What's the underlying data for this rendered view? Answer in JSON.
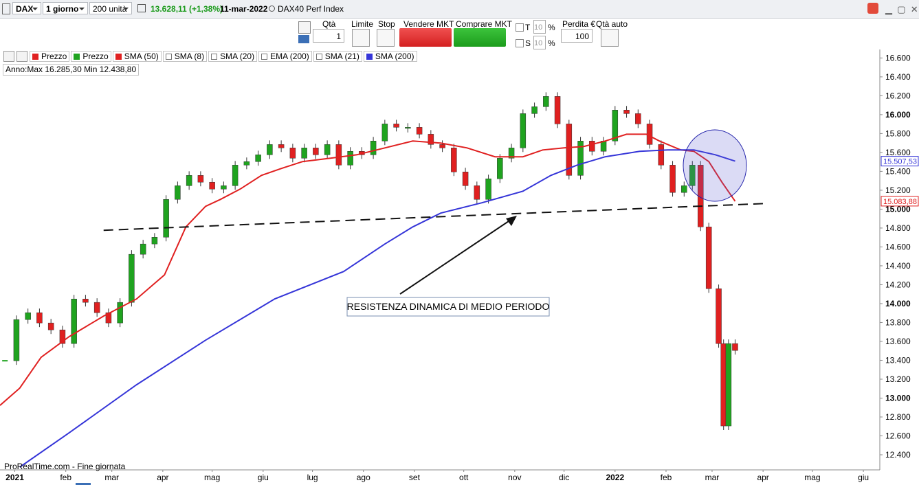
{
  "toolbar": {
    "symbol": "DAX",
    "period": "1 giorno",
    "units": "200 unità",
    "last_price": "13.628,11",
    "change": "(+1,38%)",
    "date": "11-mar-2022",
    "instrument": "DAX40 Perf Index"
  },
  "order_panel": {
    "qty_label": "Qtà",
    "qty": 1,
    "limit_label": "Limite",
    "stop_label": "Stop",
    "sell_label": "Vendere MKT",
    "buy_label": "Comprare MKT",
    "t_label": "T",
    "t_value": 10,
    "t_unit": "%",
    "s_label": "S",
    "s_value": 10,
    "s_unit": "%",
    "loss_label": "Perdita €",
    "loss_value": 100,
    "auto_qty_label": "Qtà auto"
  },
  "chart_data": {
    "type": "candlestick",
    "legend": [
      {
        "name": "Prezzo",
        "color": "#e02020"
      },
      {
        "name": "Prezzo",
        "color": "#1fa31f"
      },
      {
        "name": "SMA (50)",
        "color": "#e02020"
      },
      {
        "name": "SMA (8)"
      },
      {
        "name": "SMA (20)"
      },
      {
        "name": "EMA (200)"
      },
      {
        "name": "SMA (21)"
      },
      {
        "name": "SMA (200)",
        "color": "#3535d8"
      }
    ],
    "info": "Anno:Max 16.285,30 Min 12.438,80",
    "footer": "ProRealTime.com - Fine giornata",
    "annotation": "RESISTENZA DINAMICA DI MEDIO PERIODO",
    "xlim": [
      -9,
      526
    ],
    "ylim": [
      12240,
      16690
    ],
    "xticks": [
      {
        "value": 0,
        "label": "2021"
      },
      {
        "value": 31,
        "label": "feb"
      },
      {
        "value": 59,
        "label": "mar"
      },
      {
        "value": 90,
        "label": "apr"
      },
      {
        "value": 120,
        "label": "mag"
      },
      {
        "value": 151,
        "label": "giu"
      },
      {
        "value": 181,
        "label": "lug"
      },
      {
        "value": 212,
        "label": "ago"
      },
      {
        "value": 243,
        "label": "set"
      },
      {
        "value": 273,
        "label": "ott"
      },
      {
        "value": 304,
        "label": "nov"
      },
      {
        "value": 334,
        "label": "dic"
      },
      {
        "value": 365,
        "label": "2022"
      },
      {
        "value": 396,
        "label": "feb"
      },
      {
        "value": 424,
        "label": "mar"
      },
      {
        "value": 455,
        "label": "apr"
      },
      {
        "value": 485,
        "label": "mag"
      },
      {
        "value": 516,
        "label": "giu"
      }
    ],
    "yticks": [
      {
        "value": 12400,
        "label": "12.400"
      },
      {
        "value": 12600,
        "label": "12.600"
      },
      {
        "value": 12800,
        "label": "12.800"
      },
      {
        "value": 13000,
        "label": "13.000"
      },
      {
        "value": 13200,
        "label": "13.200"
      },
      {
        "value": 13400,
        "label": "13.400"
      },
      {
        "value": 13600,
        "label": "13.600"
      },
      {
        "value": 13800,
        "label": "13.800"
      },
      {
        "value": 14000,
        "label": "14.000"
      },
      {
        "value": 14200,
        "label": "14.200"
      },
      {
        "value": 14400,
        "label": "14.400"
      },
      {
        "value": 14600,
        "label": "14.600"
      },
      {
        "value": 14800,
        "label": "14.800"
      },
      {
        "value": 15000,
        "label": "15.000"
      },
      {
        "value": 15200,
        "label": "15.200"
      },
      {
        "value": 15400,
        "label": "15.400"
      },
      {
        "value": 15600,
        "label": "15.600"
      },
      {
        "value": 15800,
        "label": "15.800"
      },
      {
        "value": 16000,
        "label": "16.000"
      },
      {
        "value": 16200,
        "label": "16.200"
      },
      {
        "value": 16400,
        "label": "16.400"
      },
      {
        "value": 16600,
        "label": "16.600"
      }
    ],
    "series": [
      {
        "up_color": "#1fa31f",
        "down_color": "#e02020",
        "x": [
          -6,
          1,
          8,
          15,
          22,
          29,
          36,
          43,
          50,
          57,
          64,
          71,
          78,
          85,
          92,
          99,
          106,
          113,
          120,
          127,
          134,
          141,
          148,
          155,
          162,
          169,
          176,
          183,
          190,
          197,
          204,
          211,
          218,
          225,
          232,
          239,
          246,
          253,
          260,
          267,
          274,
          281,
          288,
          295,
          302,
          309,
          316,
          323,
          330,
          337,
          344,
          351,
          358,
          365,
          372,
          379,
          386,
          393,
          400,
          407,
          412,
          417,
          422,
          428,
          431,
          434,
          438
        ],
        "values": [
          13395,
          13831,
          13904,
          13795,
          13722,
          13577,
          14049,
          14013,
          13904,
          13795,
          14013,
          14522,
          14631,
          14703,
          15103,
          15248,
          15357,
          15285,
          15212,
          15248,
          15466,
          15503,
          15575,
          15684,
          15648,
          15539,
          15648,
          15575,
          15684,
          15466,
          15612,
          15575,
          15721,
          15902,
          15866,
          15866,
          15793,
          15684,
          15648,
          15394,
          15248,
          15103,
          15321,
          15539,
          15648,
          16011,
          16084,
          16193,
          15902,
          15357,
          15721,
          15612,
          15721,
          16048,
          16011,
          15902,
          15684,
          15466,
          15176,
          15248,
          15466,
          14812,
          14158,
          13577,
          12705,
          13577,
          13504
        ]
      },
      {
        "color": "#e02020",
        "last_label": "15.083,88",
        "x": [
          -9,
          3,
          16,
          33,
          54,
          74,
          91,
          104,
          116,
          125,
          137,
          150,
          162,
          175,
          192,
          208,
          225,
          242,
          259,
          275,
          292,
          309,
          321,
          334,
          346,
          359,
          372,
          384,
          392,
          405,
          413,
          422,
          430,
          438
        ],
        "values": [
          12923,
          13105,
          13432,
          13650,
          13868,
          14049,
          14304,
          14812,
          15030,
          15103,
          15212,
          15357,
          15430,
          15503,
          15539,
          15575,
          15648,
          15721,
          15699,
          15648,
          15554,
          15554,
          15626,
          15648,
          15663,
          15721,
          15793,
          15793,
          15721,
          15626,
          15612,
          15503,
          15285,
          15083.88
        ]
      },
      {
        "color": "#3535d8",
        "last_label": "15.507,53",
        "x": [
          3,
          33,
          74,
          116,
          158,
          200,
          225,
          242,
          259,
          284,
          309,
          326,
          342,
          359,
          380,
          397,
          413,
          426,
          438
        ],
        "values": [
          12269,
          12632,
          13141,
          13613,
          14049,
          14340,
          14631,
          14812,
          14958,
          15067,
          15190,
          15357,
          15466,
          15554,
          15612,
          15626,
          15626,
          15575,
          15507.53
        ]
      }
    ],
    "resistance": {
      "x": [
        54,
        456
      ],
      "values": [
        14776,
        15059
      ],
      "color": "#111111"
    }
  }
}
